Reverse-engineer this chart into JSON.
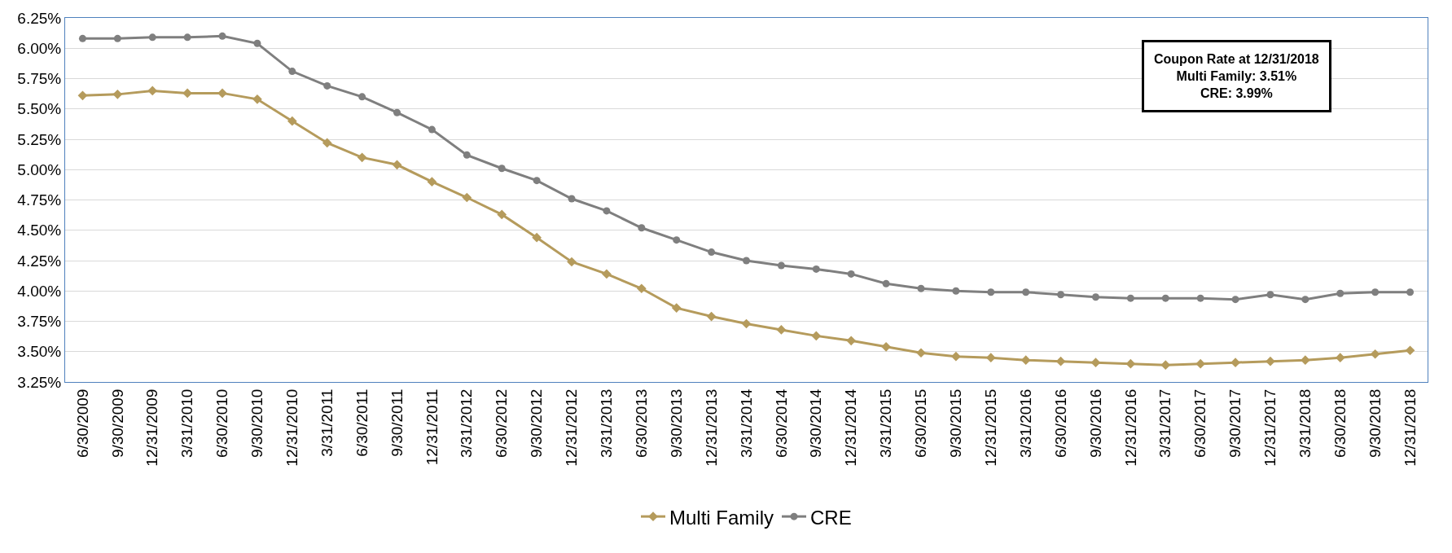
{
  "chart_data": {
    "type": "line",
    "categories": [
      "6/30/2009",
      "9/30/2009",
      "12/31/2009",
      "3/31/2010",
      "6/30/2010",
      "9/30/2010",
      "12/31/2010",
      "3/31/2011",
      "6/30/2011",
      "9/30/2011",
      "12/31/2011",
      "3/31/2012",
      "6/30/2012",
      "9/30/2012",
      "12/31/2012",
      "3/31/2013",
      "6/30/2013",
      "9/30/2013",
      "12/31/2013",
      "3/31/2014",
      "6/30/2014",
      "9/30/2014",
      "12/31/2014",
      "3/31/2015",
      "6/30/2015",
      "9/30/2015",
      "12/31/2015",
      "3/31/2016",
      "6/30/2016",
      "9/30/2016",
      "12/31/2016",
      "3/31/2017",
      "6/30/2017",
      "9/30/2017",
      "12/31/2017",
      "3/31/2018",
      "6/30/2018",
      "9/30/2018",
      "12/31/2018"
    ],
    "series": [
      {
        "name": "Multi Family",
        "color": "#b59b5c",
        "marker": "diamond",
        "values": [
          5.61,
          5.62,
          5.65,
          5.63,
          5.63,
          5.58,
          5.4,
          5.22,
          5.1,
          5.04,
          4.9,
          4.77,
          4.63,
          4.44,
          4.24,
          4.14,
          4.02,
          3.86,
          3.79,
          3.73,
          3.68,
          3.63,
          3.59,
          3.54,
          3.49,
          3.46,
          3.45,
          3.43,
          3.42,
          3.41,
          3.4,
          3.39,
          3.4,
          3.41,
          3.42,
          3.43,
          3.45,
          3.48,
          3.51
        ]
      },
      {
        "name": "CRE",
        "color": "#7f7f7f",
        "marker": "circle",
        "values": [
          6.08,
          6.08,
          6.09,
          6.09,
          6.1,
          6.04,
          5.81,
          5.69,
          5.6,
          5.47,
          5.33,
          5.12,
          5.01,
          4.91,
          4.76,
          4.66,
          4.52,
          4.42,
          4.32,
          4.25,
          4.21,
          4.18,
          4.14,
          4.06,
          4.02,
          4.0,
          3.99,
          3.99,
          3.97,
          3.95,
          3.94,
          3.94,
          3.94,
          3.93,
          3.97,
          3.93,
          3.98,
          3.99,
          3.99
        ]
      }
    ],
    "ylim": [
      3.25,
      6.25
    ],
    "yticks": [
      {
        "value": 3.25,
        "label": "3.25%"
      },
      {
        "value": 3.5,
        "label": "3.50%"
      },
      {
        "value": 3.75,
        "label": "3.75%"
      },
      {
        "value": 4.0,
        "label": "4.00%"
      },
      {
        "value": 4.25,
        "label": "4.25%"
      },
      {
        "value": 4.5,
        "label": "4.50%"
      },
      {
        "value": 4.75,
        "label": "4.75%"
      },
      {
        "value": 5.0,
        "label": "5.00%"
      },
      {
        "value": 5.25,
        "label": "5.25%"
      },
      {
        "value": 5.5,
        "label": "5.50%"
      },
      {
        "value": 5.75,
        "label": "5.75%"
      },
      {
        "value": 6.0,
        "label": "6.00%"
      },
      {
        "value": 6.25,
        "label": "6.25%"
      }
    ],
    "annotations": [
      "Coupon Rate at 12/31/2018\nMulti Family: 3.51%\nCRE: 3.99%"
    ],
    "grid": "y",
    "legend": "bottom",
    "line_style": "solid"
  }
}
